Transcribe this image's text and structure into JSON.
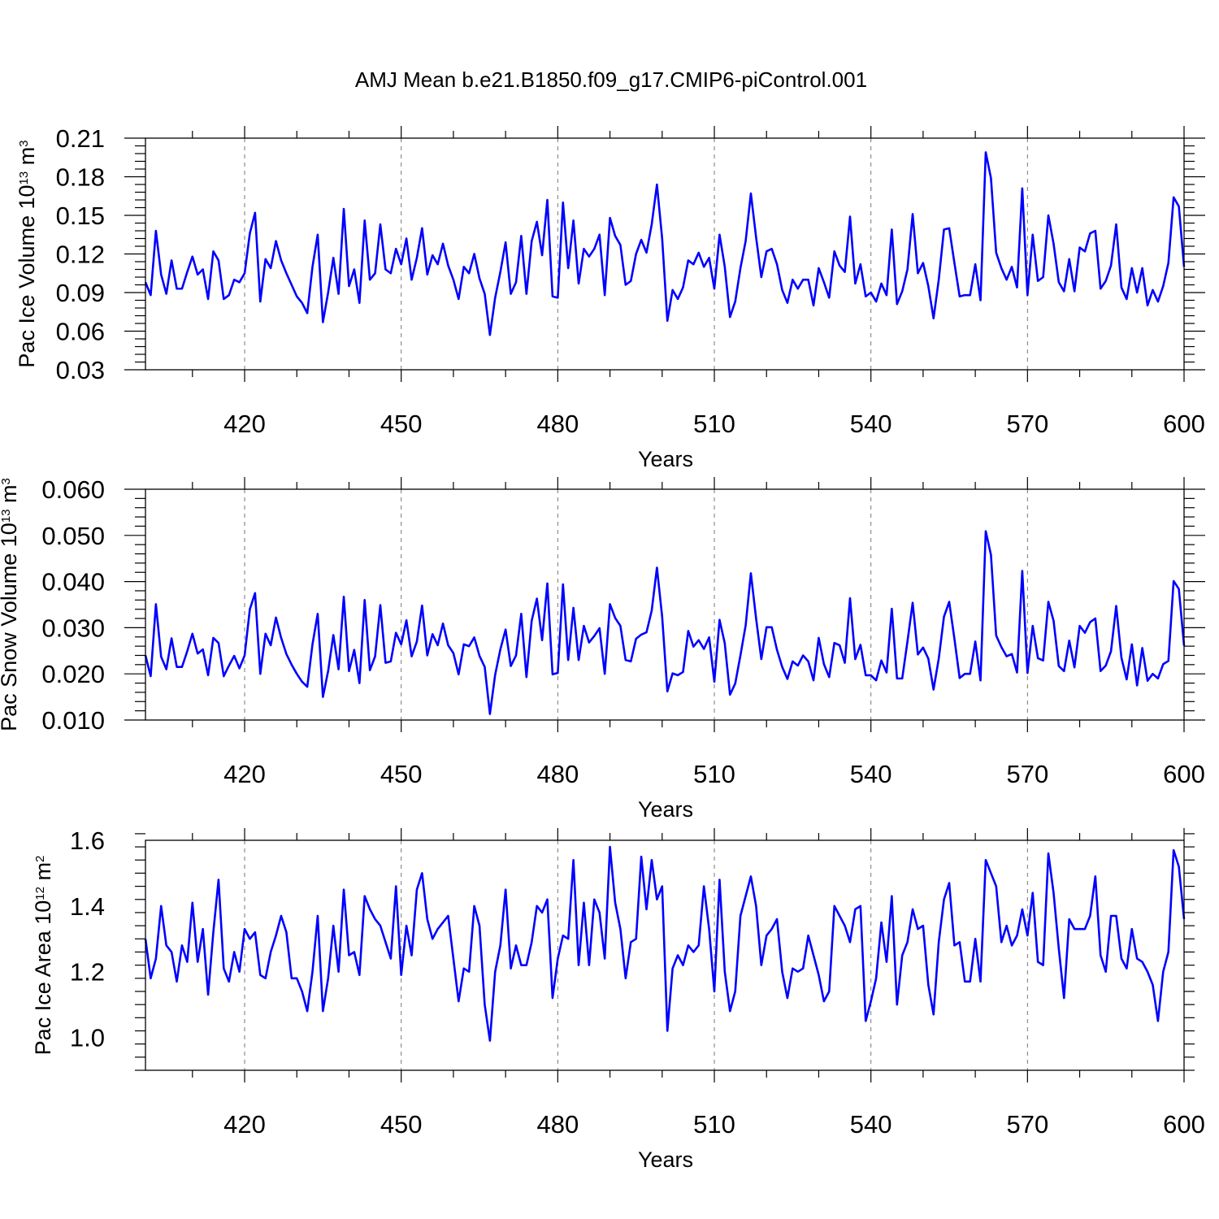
{
  "title": "AMJ Mean b.e21.B1850.f09_g17.CMIP6-piControl.001",
  "colors": {
    "line": "#0000ff",
    "axis": "#000000",
    "grid": "#777777"
  },
  "chart_data": [
    {
      "type": "line",
      "xlabel": "Years",
      "ylabel": "Pac Ice Volume 10",
      "ylabel_exp": "13",
      "ylabel_unit": " m",
      "ylabel_unit_exp": "3",
      "xlim": [
        401,
        600
      ],
      "ylim": [
        0.03,
        0.21
      ],
      "xticks": [
        420,
        450,
        480,
        510,
        540,
        570,
        600
      ],
      "xtick_labels": [
        "420",
        "450",
        "480",
        "510",
        "540",
        "570",
        "600"
      ],
      "yticks": [
        0.03,
        0.06,
        0.09,
        0.12,
        0.15,
        0.18,
        0.21
      ],
      "ytick_labels": [
        "0.03",
        "0.06",
        "0.09",
        "0.12",
        "0.15",
        "0.18",
        "0.21"
      ],
      "grid": "vertical dashed at major x ticks",
      "x_start": 401,
      "values": [
        0.098,
        0.088,
        0.138,
        0.104,
        0.089,
        0.115,
        0.093,
        0.093,
        0.106,
        0.118,
        0.104,
        0.108,
        0.085,
        0.122,
        0.115,
        0.085,
        0.088,
        0.1,
        0.098,
        0.105,
        0.136,
        0.152,
        0.083,
        0.116,
        0.109,
        0.13,
        0.115,
        0.105,
        0.096,
        0.087,
        0.082,
        0.074,
        0.11,
        0.135,
        0.067,
        0.09,
        0.117,
        0.089,
        0.155,
        0.095,
        0.108,
        0.082,
        0.146,
        0.1,
        0.105,
        0.143,
        0.108,
        0.105,
        0.124,
        0.112,
        0.132,
        0.1,
        0.117,
        0.14,
        0.104,
        0.119,
        0.112,
        0.128,
        0.111,
        0.1,
        0.085,
        0.11,
        0.105,
        0.12,
        0.101,
        0.089,
        0.057,
        0.086,
        0.106,
        0.129,
        0.089,
        0.098,
        0.134,
        0.089,
        0.13,
        0.145,
        0.119,
        0.162,
        0.087,
        0.086,
        0.16,
        0.109,
        0.146,
        0.097,
        0.124,
        0.118,
        0.124,
        0.135,
        0.088,
        0.148,
        0.134,
        0.127,
        0.096,
        0.099,
        0.12,
        0.131,
        0.121,
        0.143,
        0.174,
        0.132,
        0.068,
        0.092,
        0.085,
        0.094,
        0.115,
        0.112,
        0.121,
        0.11,
        0.117,
        0.093,
        0.135,
        0.11,
        0.071,
        0.083,
        0.109,
        0.13,
        0.167,
        0.133,
        0.102,
        0.122,
        0.124,
        0.112,
        0.092,
        0.082,
        0.1,
        0.093,
        0.1,
        0.1,
        0.08,
        0.109,
        0.098,
        0.086,
        0.122,
        0.111,
        0.106,
        0.149,
        0.097,
        0.112,
        0.087,
        0.09,
        0.083,
        0.097,
        0.088,
        0.139,
        0.081,
        0.091,
        0.108,
        0.151,
        0.105,
        0.113,
        0.095,
        0.07,
        0.1,
        0.139,
        0.14,
        0.113,
        0.087,
        0.088,
        0.088,
        0.112,
        0.084,
        0.199,
        0.179,
        0.121,
        0.109,
        0.1,
        0.11,
        0.094,
        0.171,
        0.088,
        0.135,
        0.099,
        0.102,
        0.15,
        0.128,
        0.098,
        0.091,
        0.116,
        0.091,
        0.125,
        0.122,
        0.136,
        0.138,
        0.093,
        0.099,
        0.111,
        0.143,
        0.094,
        0.085,
        0.109,
        0.09,
        0.109,
        0.08,
        0.092,
        0.083,
        0.095,
        0.113,
        0.164,
        0.157,
        0.11
      ]
    },
    {
      "type": "line",
      "xlabel": "Years",
      "ylabel": "Pac Snow Volume 10",
      "ylabel_exp": "13",
      "ylabel_unit": " m",
      "ylabel_unit_exp": "3",
      "xlim": [
        401,
        600
      ],
      "ylim": [
        0.01,
        0.06
      ],
      "xticks": [
        420,
        450,
        480,
        510,
        540,
        570,
        600
      ],
      "xtick_labels": [
        "420",
        "450",
        "480",
        "510",
        "540",
        "570",
        "600"
      ],
      "yticks": [
        0.01,
        0.02,
        0.03,
        0.04,
        0.05,
        0.06
      ],
      "ytick_labels": [
        "0.010",
        "0.020",
        "0.030",
        "0.040",
        "0.050",
        "0.060"
      ],
      "grid": "vertical dashed at major x ticks",
      "x_start": 401,
      "values": [
        0.024,
        0.0195,
        0.0351,
        0.0237,
        0.021,
        0.0277,
        0.0215,
        0.0215,
        0.0249,
        0.0287,
        0.0244,
        0.0253,
        0.0197,
        0.0278,
        0.0267,
        0.0195,
        0.0218,
        0.0239,
        0.0212,
        0.024,
        0.034,
        0.0375,
        0.02,
        0.0287,
        0.0262,
        0.0322,
        0.0278,
        0.0243,
        0.022,
        0.02,
        0.0183,
        0.0172,
        0.0264,
        0.033,
        0.015,
        0.0206,
        0.0284,
        0.021,
        0.0367,
        0.0206,
        0.0252,
        0.018,
        0.036,
        0.0208,
        0.0238,
        0.0349,
        0.0224,
        0.0227,
        0.0289,
        0.0264,
        0.0316,
        0.0238,
        0.027,
        0.0348,
        0.024,
        0.0286,
        0.0262,
        0.0309,
        0.0262,
        0.0245,
        0.0199,
        0.0264,
        0.026,
        0.0279,
        0.0239,
        0.0215,
        0.0113,
        0.0198,
        0.0253,
        0.0296,
        0.0217,
        0.024,
        0.033,
        0.0193,
        0.0315,
        0.0363,
        0.0273,
        0.0396,
        0.0199,
        0.0202,
        0.0394,
        0.023,
        0.0343,
        0.023,
        0.0304,
        0.0268,
        0.0282,
        0.0299,
        0.02,
        0.0351,
        0.0321,
        0.0304,
        0.023,
        0.0227,
        0.0276,
        0.0285,
        0.029,
        0.0337,
        0.043,
        0.0324,
        0.0162,
        0.0201,
        0.0197,
        0.0204,
        0.0293,
        0.0259,
        0.0273,
        0.0254,
        0.0279,
        0.0183,
        0.0317,
        0.0266,
        0.0155,
        0.0179,
        0.024,
        0.0305,
        0.0418,
        0.032,
        0.0232,
        0.0301,
        0.0301,
        0.0252,
        0.0215,
        0.0189,
        0.0227,
        0.0218,
        0.024,
        0.0227,
        0.0186,
        0.0278,
        0.0221,
        0.0193,
        0.0267,
        0.0262,
        0.0224,
        0.0364,
        0.0232,
        0.0263,
        0.0197,
        0.0197,
        0.0186,
        0.0229,
        0.0203,
        0.0341,
        0.019,
        0.019,
        0.027,
        0.0354,
        0.0242,
        0.0257,
        0.0233,
        0.0166,
        0.0233,
        0.0324,
        0.0356,
        0.0276,
        0.0191,
        0.02,
        0.02,
        0.027,
        0.0186,
        0.0509,
        0.0458,
        0.0283,
        0.0258,
        0.0238,
        0.0243,
        0.0203,
        0.0423,
        0.0202,
        0.0304,
        0.0234,
        0.0229,
        0.0356,
        0.0315,
        0.0217,
        0.0206,
        0.0272,
        0.0214,
        0.0304,
        0.0289,
        0.0312,
        0.032,
        0.0206,
        0.0218,
        0.0249,
        0.0347,
        0.0235,
        0.0188,
        0.0264,
        0.0175,
        0.0256,
        0.0185,
        0.02,
        0.019,
        0.0221,
        0.0228,
        0.0401,
        0.0384,
        0.0261
      ]
    },
    {
      "type": "line",
      "xlabel": "Years",
      "ylabel": "Pac Ice Area 10",
      "ylabel_exp": "12",
      "ylabel_unit": " m",
      "ylabel_unit_exp": "2",
      "xlim": [
        401,
        600
      ],
      "ylim": [
        0.9,
        1.6
      ],
      "xticks": [
        420,
        450,
        480,
        510,
        540,
        570,
        600
      ],
      "xtick_labels": [
        "420",
        "450",
        "480",
        "510",
        "540",
        "570",
        "600"
      ],
      "yticks": [
        1.0,
        1.2,
        1.4,
        1.6
      ],
      "ytick_labels": [
        "1.0",
        "1.2",
        "1.4",
        "1.6"
      ],
      "grid": "vertical dashed at major x ticks",
      "x_start": 401,
      "values": [
        1.3,
        1.18,
        1.24,
        1.4,
        1.28,
        1.26,
        1.17,
        1.28,
        1.23,
        1.41,
        1.23,
        1.33,
        1.13,
        1.32,
        1.48,
        1.21,
        1.17,
        1.26,
        1.2,
        1.33,
        1.3,
        1.32,
        1.19,
        1.18,
        1.26,
        1.31,
        1.37,
        1.32,
        1.18,
        1.18,
        1.14,
        1.08,
        1.2,
        1.37,
        1.08,
        1.18,
        1.34,
        1.2,
        1.45,
        1.25,
        1.26,
        1.19,
        1.43,
        1.39,
        1.36,
        1.34,
        1.29,
        1.24,
        1.46,
        1.19,
        1.34,
        1.25,
        1.45,
        1.5,
        1.36,
        1.3,
        1.33,
        1.35,
        1.37,
        1.24,
        1.11,
        1.21,
        1.2,
        1.4,
        1.34,
        1.1,
        0.99,
        1.2,
        1.28,
        1.45,
        1.21,
        1.28,
        1.22,
        1.22,
        1.29,
        1.4,
        1.38,
        1.42,
        1.12,
        1.24,
        1.31,
        1.3,
        1.54,
        1.22,
        1.41,
        1.22,
        1.42,
        1.38,
        1.24,
        1.58,
        1.41,
        1.33,
        1.18,
        1.29,
        1.3,
        1.55,
        1.39,
        1.54,
        1.42,
        1.46,
        1.02,
        1.21,
        1.25,
        1.22,
        1.28,
        1.26,
        1.28,
        1.46,
        1.33,
        1.14,
        1.48,
        1.2,
        1.08,
        1.14,
        1.37,
        1.43,
        1.49,
        1.4,
        1.22,
        1.31,
        1.33,
        1.36,
        1.2,
        1.12,
        1.21,
        1.2,
        1.21,
        1.31,
        1.25,
        1.19,
        1.11,
        1.14,
        1.4,
        1.37,
        1.34,
        1.29,
        1.39,
        1.4,
        1.05,
        1.11,
        1.18,
        1.35,
        1.23,
        1.43,
        1.1,
        1.25,
        1.29,
        1.39,
        1.33,
        1.34,
        1.16,
        1.07,
        1.29,
        1.42,
        1.47,
        1.28,
        1.29,
        1.17,
        1.17,
        1.3,
        1.17,
        1.54,
        1.5,
        1.46,
        1.29,
        1.34,
        1.28,
        1.31,
        1.39,
        1.31,
        1.44,
        1.23,
        1.22,
        1.56,
        1.44,
        1.27,
        1.12,
        1.36,
        1.33,
        1.33,
        1.33,
        1.37,
        1.49,
        1.25,
        1.2,
        1.37,
        1.37,
        1.24,
        1.21,
        1.33,
        1.24,
        1.23,
        1.2,
        1.16,
        1.05,
        1.2,
        1.26,
        1.57,
        1.52,
        1.36
      ]
    }
  ]
}
